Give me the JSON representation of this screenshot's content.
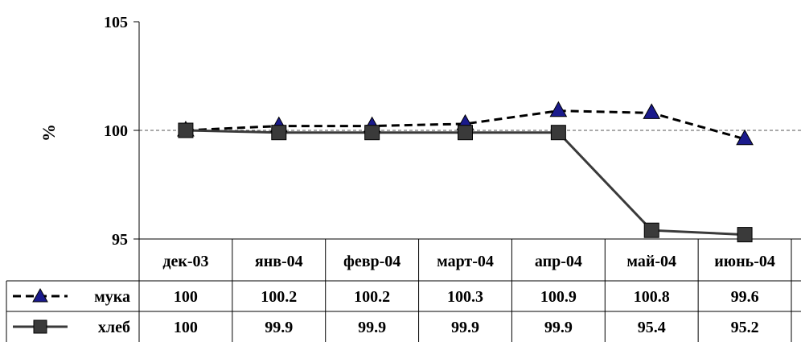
{
  "chart_data": {
    "type": "line",
    "title": "",
    "xlabel": "",
    "ylabel": "%",
    "ylim": [
      95,
      105
    ],
    "yticks": [
      95,
      100,
      105
    ],
    "reference_line": 100,
    "categories": [
      "дек-03",
      "янв-04",
      "февр-04",
      "март-04",
      "апр-04",
      "май-04",
      "июнь-04"
    ],
    "series": [
      {
        "name": "мука",
        "values": [
          100,
          100.2,
          100.2,
          100.3,
          100.9,
          100.8,
          99.6
        ],
        "labels": [
          "100",
          "100.2",
          "100.2",
          "100.3",
          "100.9",
          "100.8",
          "99.6"
        ],
        "line_style": "dashed",
        "marker": "triangle",
        "marker_color": "#1a1a8c",
        "line_color": "#000000"
      },
      {
        "name": "хлеб",
        "values": [
          100,
          99.9,
          99.9,
          99.9,
          99.9,
          95.4,
          95.2
        ],
        "labels": [
          "100",
          "99.9",
          "99.9",
          "99.9",
          "99.9",
          "95.4",
          "95.2"
        ],
        "line_style": "solid",
        "marker": "square",
        "marker_color": "#3a3a3a",
        "line_color": "#3a3a3a"
      }
    ],
    "legend": "data-table"
  }
}
